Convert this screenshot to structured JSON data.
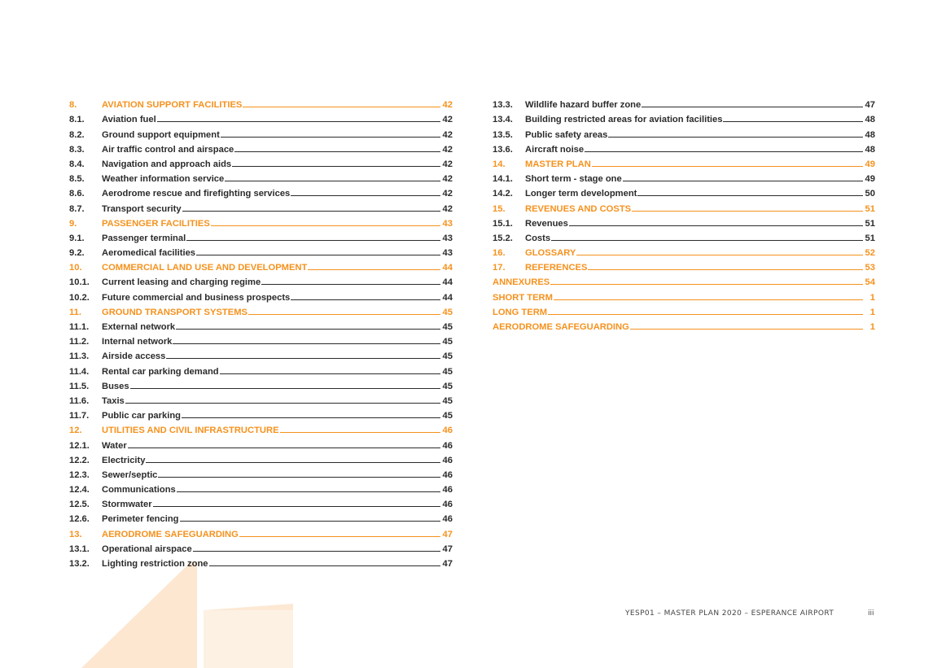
{
  "left_entries": [
    {
      "num": "8.",
      "title": "AVIATION SUPPORT FACILITIES",
      "page": "42",
      "section": true
    },
    {
      "num": "8.1.",
      "title": "Aviation fuel",
      "page": "42",
      "section": false
    },
    {
      "num": "8.2.",
      "title": "Ground support equipment",
      "page": "42",
      "section": false
    },
    {
      "num": "8.3.",
      "title": "Air traffic control and airspace",
      "page": "42",
      "section": false
    },
    {
      "num": "8.4.",
      "title": "Navigation and approach aids",
      "page": "42",
      "section": false
    },
    {
      "num": "8.5.",
      "title": "Weather information service",
      "page": "42",
      "section": false
    },
    {
      "num": "8.6.",
      "title": "Aerodrome rescue and firefighting services",
      "page": "42",
      "section": false
    },
    {
      "num": "8.7.",
      "title": "Transport security",
      "page": "42",
      "section": false
    },
    {
      "num": "9.",
      "title": "PASSENGER FACILITIES",
      "page": "43",
      "section": true
    },
    {
      "num": "9.1.",
      "title": "Passenger terminal",
      "page": "43",
      "section": false
    },
    {
      "num": "9.2.",
      "title": "Aeromedical facilities",
      "page": "43",
      "section": false
    },
    {
      "num": "10.",
      "title": "COMMERCIAL LAND USE AND DEVELOPMENT",
      "page": "44",
      "section": true
    },
    {
      "num": "10.1.",
      "title": "Current leasing and charging regime",
      "page": "44",
      "section": false
    },
    {
      "num": "10.2.",
      "title": "Future commercial and business prospects",
      "page": "44",
      "section": false
    },
    {
      "num": "11.",
      "title": "GROUND TRANSPORT SYSTEMS",
      "page": "45",
      "section": true
    },
    {
      "num": "11.1.",
      "title": "External network",
      "page": "45",
      "section": false
    },
    {
      "num": "11.2.",
      "title": "Internal network",
      "page": "45",
      "section": false
    },
    {
      "num": "11.3.",
      "title": "Airside access",
      "page": "45",
      "section": false
    },
    {
      "num": "11.4.",
      "title": "Rental car parking demand",
      "page": "45",
      "section": false
    },
    {
      "num": "11.5.",
      "title": "Buses",
      "page": "45",
      "section": false
    },
    {
      "num": "11.6.",
      "title": "Taxis",
      "page": "45",
      "section": false
    },
    {
      "num": "11.7.",
      "title": "Public car parking",
      "page": "45",
      "section": false
    },
    {
      "num": "12.",
      "title": "UTILITIES AND CIVIL INFRASTRUCTURE",
      "page": "46",
      "section": true
    },
    {
      "num": "12.1.",
      "title": "Water",
      "page": "46",
      "section": false
    },
    {
      "num": "12.2.",
      "title": "Electricity",
      "page": "46",
      "section": false
    },
    {
      "num": "12.3.",
      "title": "Sewer/septic",
      "page": "46",
      "section": false
    },
    {
      "num": "12.4.",
      "title": "Communications",
      "page": "46",
      "section": false
    },
    {
      "num": "12.5.",
      "title": "Stormwater",
      "page": "46",
      "section": false
    },
    {
      "num": "12.6.",
      "title": "Perimeter fencing",
      "page": "46",
      "section": false
    },
    {
      "num": "13.",
      "title": "AERODROME SAFEGUARDING",
      "page": "47",
      "section": true
    },
    {
      "num": "13.1.",
      "title": "Operational airspace",
      "page": "47",
      "section": false
    },
    {
      "num": "13.2.",
      "title": "Lighting restriction zone",
      "page": "47",
      "section": false
    }
  ],
  "right_entries": [
    {
      "num": "13.3.",
      "title": "Wildlife hazard buffer zone",
      "page": "47",
      "section": false
    },
    {
      "num": "13.4.",
      "title": "Building restricted areas for aviation facilities",
      "page": "48",
      "section": false
    },
    {
      "num": "13.5.",
      "title": "Public safety areas",
      "page": "48",
      "section": false
    },
    {
      "num": "13.6.",
      "title": "Aircraft noise",
      "page": "48",
      "section": false
    },
    {
      "num": "14.",
      "title": "MASTER PLAN",
      "page": "49",
      "section": true
    },
    {
      "num": "14.1.",
      "title": "Short term - stage one",
      "page": "49",
      "section": false
    },
    {
      "num": "14.2.",
      "title": "Longer term development",
      "page": "50",
      "section": false
    },
    {
      "num": "15.",
      "title": "REVENUES AND COSTS",
      "page": "51",
      "section": true
    },
    {
      "num": "15.1.",
      "title": "Revenues",
      "page": "51",
      "section": false
    },
    {
      "num": "15.2.",
      "title": "Costs",
      "page": "51",
      "section": false
    },
    {
      "num": "16.",
      "title": "GLOSSARY",
      "page": "52",
      "section": true
    },
    {
      "num": "17.",
      "title": "REFERENCES",
      "page": "53",
      "section": true
    },
    {
      "num": "",
      "title": "ANNEXURES",
      "page": "54",
      "section": true
    },
    {
      "num": "",
      "title": "SHORT TERM",
      "page": "1",
      "section": true
    },
    {
      "num": "",
      "title": "LONG TERM",
      "page": "1",
      "section": true
    },
    {
      "num": "",
      "title": "AERODROME SAFEGUARDING",
      "page": "1",
      "section": true
    }
  ],
  "footer": {
    "text": "YESP01 – MASTER PLAN 2020 – ESPERANCE AIRPORT",
    "page": "iii"
  },
  "colors": {
    "accent": "#f5921e",
    "text": "#2b2b2b"
  }
}
